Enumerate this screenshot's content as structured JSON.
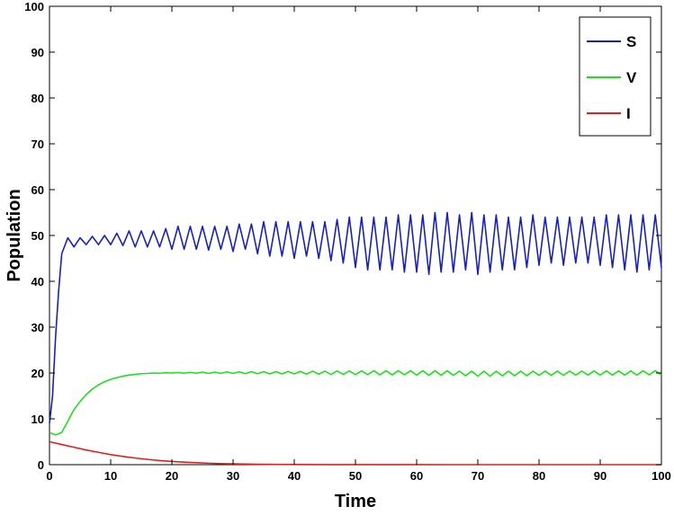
{
  "chart_data": {
    "type": "line",
    "title": "",
    "xlabel": "Time",
    "ylabel": "Population",
    "xlim": [
      0,
      100
    ],
    "ylim": [
      0,
      100
    ],
    "xticks": [
      0,
      10,
      20,
      30,
      40,
      50,
      60,
      70,
      80,
      90,
      100
    ],
    "yticks": [
      0,
      10,
      20,
      30,
      40,
      50,
      60,
      70,
      80,
      90,
      100
    ],
    "grid": false,
    "legend_position": "top-right",
    "series": [
      {
        "name": "S",
        "color": "#1a22b4",
        "x": [
          0,
          0.5,
          1,
          1.5,
          2,
          3,
          4,
          5,
          6,
          7,
          8,
          9,
          10,
          11,
          12,
          13,
          14,
          15,
          16,
          17,
          18,
          19,
          20,
          21,
          22,
          23,
          24,
          25,
          26,
          27,
          28,
          29,
          30,
          31,
          32,
          33,
          34,
          35,
          36,
          37,
          38,
          39,
          40,
          41,
          42,
          43,
          44,
          45,
          46,
          47,
          48,
          49,
          50,
          51,
          52,
          53,
          54,
          55,
          56,
          57,
          58,
          59,
          60,
          61,
          62,
          63,
          64,
          65,
          66,
          67,
          68,
          69,
          70,
          71,
          72,
          73,
          74,
          75,
          76,
          77,
          78,
          79,
          80,
          81,
          82,
          83,
          84,
          85,
          86,
          87,
          88,
          89,
          90,
          91,
          92,
          93,
          94,
          95,
          96,
          97,
          98,
          99,
          100
        ],
        "values": [
          9,
          15,
          28,
          38,
          46,
          49.5,
          47.5,
          49.5,
          48,
          49.8,
          48,
          50,
          48,
          50.5,
          47.8,
          51,
          47.5,
          51,
          47.5,
          51,
          47.5,
          51.5,
          47,
          52,
          47,
          52,
          47,
          52,
          46.8,
          52,
          47,
          52,
          46.5,
          52.5,
          47,
          52.5,
          46,
          53,
          45.5,
          53,
          45.5,
          53,
          45,
          53,
          45.5,
          53,
          45,
          53,
          44.5,
          53.5,
          44,
          54,
          43,
          54,
          42.5,
          54,
          42.5,
          54,
          42.5,
          54.5,
          42,
          54.5,
          42,
          54.5,
          41.5,
          55,
          42,
          55,
          42,
          54.5,
          42.5,
          55,
          41.5,
          54.5,
          42,
          54.5,
          42.5,
          54,
          42.5,
          54,
          43,
          54.5,
          43.5,
          54,
          44,
          54,
          43.5,
          54,
          44,
          54,
          44,
          54,
          43.5,
          54.5,
          43,
          54.5,
          42.5,
          54.5,
          42,
          54.5,
          42.5,
          54.5,
          43
        ]
      },
      {
        "name": "V",
        "color": "#22dd22",
        "x": [
          0,
          1,
          2,
          3,
          4,
          5,
          6,
          7,
          8,
          9,
          10,
          11,
          12,
          13,
          14,
          15,
          16,
          17,
          18,
          19,
          20,
          21,
          22,
          23,
          24,
          25,
          26,
          27,
          28,
          29,
          30,
          31,
          32,
          33,
          34,
          35,
          36,
          37,
          38,
          39,
          40,
          41,
          42,
          43,
          44,
          45,
          46,
          47,
          48,
          49,
          50,
          51,
          52,
          53,
          54,
          55,
          56,
          57,
          58,
          59,
          60,
          61,
          62,
          63,
          64,
          65,
          66,
          67,
          68,
          69,
          70,
          71,
          72,
          73,
          74,
          75,
          76,
          77,
          78,
          79,
          80,
          81,
          82,
          83,
          84,
          85,
          86,
          87,
          88,
          89,
          90,
          91,
          92,
          93,
          94,
          95,
          96,
          97,
          98,
          99,
          100
        ],
        "values": [
          7,
          6.5,
          7,
          9.5,
          12,
          13.8,
          15.3,
          16.5,
          17.4,
          18.1,
          18.6,
          19.0,
          19.3,
          19.55,
          19.7,
          19.85,
          19.9,
          20.0,
          19.95,
          20.05,
          20.0,
          20.1,
          19.95,
          20.15,
          19.95,
          20.2,
          19.9,
          20.2,
          19.9,
          20.25,
          19.9,
          20.25,
          19.85,
          20.3,
          19.85,
          20.3,
          19.8,
          20.3,
          19.8,
          20.35,
          19.8,
          20.35,
          19.75,
          20.4,
          19.75,
          20.4,
          19.7,
          20.45,
          19.7,
          20.45,
          19.65,
          20.45,
          19.65,
          20.5,
          19.6,
          20.5,
          19.6,
          20.5,
          19.6,
          20.5,
          19.55,
          20.5,
          19.5,
          20.5,
          19.5,
          20.5,
          19.5,
          20.4,
          19.4,
          20.4,
          19.3,
          20.4,
          19.3,
          20.4,
          19.4,
          20.4,
          19.4,
          20.4,
          19.4,
          20.4,
          19.5,
          20.4,
          19.5,
          20.4,
          19.5,
          20.4,
          19.55,
          20.4,
          19.55,
          20.45,
          19.55,
          20.45,
          19.55,
          20.45,
          19.55,
          20.45,
          19.55,
          20.5,
          19.6,
          20.5,
          19.6
        ]
      },
      {
        "name": "I",
        "color": "#dd2020",
        "x": [
          0,
          2,
          4,
          6,
          8,
          10,
          12,
          14,
          16,
          18,
          20,
          22,
          24,
          26,
          28,
          30,
          32,
          34,
          36,
          38,
          40,
          45,
          50,
          55,
          60,
          65,
          70,
          75,
          80,
          85,
          90,
          95,
          100
        ],
        "values": [
          5,
          4.4,
          3.8,
          3.2,
          2.7,
          2.2,
          1.8,
          1.45,
          1.15,
          0.9,
          0.7,
          0.55,
          0.42,
          0.32,
          0.24,
          0.18,
          0.13,
          0.1,
          0.07,
          0.05,
          0.04,
          0.02,
          0.01,
          0.005,
          0.003,
          0.002,
          0.001,
          0.0005,
          0.0003,
          0.0002,
          0.0001,
          0.0001,
          0.0001
        ]
      }
    ]
  }
}
